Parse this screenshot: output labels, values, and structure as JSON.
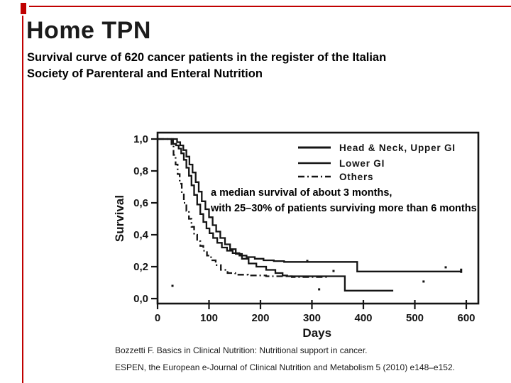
{
  "slide": {
    "title": "Home TPN",
    "subtitle_line1": "Survival curve of 620 cancer patients in the register of the Italian",
    "subtitle_line2": "Society of Parenteral and Enteral Nutrition",
    "annotation_line1": "a median survival of about 3 months,",
    "annotation_line2": "with 25–30% of patients surviving more than 6 months",
    "citation_line1": "Bozzetti F. Basics in Clinical Nutrition: Nutritional support in cancer.",
    "citation_line2": "ESPEN, the European e-Journal of Clinical Nutrition and Metabolism 5 (2010) e148–e152.",
    "accent_color": "#c00000",
    "ink_color": "#141414"
  },
  "chart_data": {
    "type": "line",
    "subtype": "kaplan-meier-step",
    "title": "",
    "xlabel": "Days",
    "ylabel": "Survival",
    "xlim": [
      0,
      623
    ],
    "ylim": [
      0,
      1.04
    ],
    "grid": false,
    "legend_position": "inside-top-right",
    "x_ticks": [
      0,
      100,
      200,
      300,
      400,
      500,
      600
    ],
    "y_ticks": [
      {
        "label": "1,0",
        "value": 1.0
      },
      {
        "label": "0,8",
        "value": 0.8
      },
      {
        "label": "0,6",
        "value": 0.6
      },
      {
        "label": "0,4",
        "value": 0.4
      },
      {
        "label": "0,2",
        "value": 0.2
      },
      {
        "label": "0,0",
        "value": 0.0
      }
    ],
    "series": [
      {
        "name": "Head & Neck, Upper GI",
        "style": "solid",
        "end_tick": true,
        "points": [
          [
            0,
            1.0
          ],
          [
            25,
            1.0
          ],
          [
            30,
            0.97
          ],
          [
            36,
            0.96
          ],
          [
            41,
            0.94
          ],
          [
            46,
            0.91
          ],
          [
            51,
            0.87
          ],
          [
            56,
            0.82
          ],
          [
            61,
            0.77
          ],
          [
            66,
            0.71
          ],
          [
            71,
            0.65
          ],
          [
            77,
            0.59
          ],
          [
            83,
            0.53
          ],
          [
            89,
            0.48
          ],
          [
            95,
            0.44
          ],
          [
            101,
            0.41
          ],
          [
            108,
            0.38
          ],
          [
            116,
            0.35
          ],
          [
            125,
            0.32
          ],
          [
            135,
            0.3
          ],
          [
            146,
            0.285
          ],
          [
            159,
            0.27
          ],
          [
            173,
            0.26
          ],
          [
            189,
            0.25
          ],
          [
            206,
            0.24
          ],
          [
            226,
            0.235
          ],
          [
            246,
            0.23
          ],
          [
            386,
            0.23
          ],
          [
            388,
            0.17
          ],
          [
            590,
            0.17
          ]
        ]
      },
      {
        "name": "Lower GI",
        "style": "solid",
        "end_tick": false,
        "points": [
          [
            0,
            1.0
          ],
          [
            32,
            1.0
          ],
          [
            38,
            0.98
          ],
          [
            44,
            0.96
          ],
          [
            50,
            0.93
          ],
          [
            56,
            0.89
          ],
          [
            62,
            0.84
          ],
          [
            68,
            0.79
          ],
          [
            74,
            0.73
          ],
          [
            80,
            0.67
          ],
          [
            86,
            0.61
          ],
          [
            93,
            0.56
          ],
          [
            100,
            0.51
          ],
          [
            107,
            0.46
          ],
          [
            114,
            0.42
          ],
          [
            122,
            0.38
          ],
          [
            131,
            0.34
          ],
          [
            141,
            0.31
          ],
          [
            152,
            0.28
          ],
          [
            164,
            0.25
          ],
          [
            177,
            0.22
          ],
          [
            192,
            0.2
          ],
          [
            211,
            0.18
          ],
          [
            229,
            0.16
          ],
          [
            243,
            0.145
          ],
          [
            252,
            0.14
          ],
          [
            362,
            0.14
          ],
          [
            364,
            0.05
          ],
          [
            458,
            0.05
          ]
        ]
      },
      {
        "name": "Others",
        "style": "dash-dot",
        "end_tick": false,
        "points": [
          [
            0,
            1.0
          ],
          [
            22,
            1.0
          ],
          [
            27,
            0.96
          ],
          [
            31,
            0.9
          ],
          [
            35,
            0.84
          ],
          [
            39,
            0.78
          ],
          [
            43,
            0.72
          ],
          [
            47,
            0.66
          ],
          [
            51,
            0.6
          ],
          [
            56,
            0.55
          ],
          [
            61,
            0.5
          ],
          [
            66,
            0.45
          ],
          [
            71,
            0.4
          ],
          [
            77,
            0.36
          ],
          [
            83,
            0.33
          ],
          [
            89,
            0.3
          ],
          [
            96,
            0.27
          ],
          [
            104,
            0.24
          ],
          [
            113,
            0.21
          ],
          [
            123,
            0.18
          ],
          [
            136,
            0.16
          ],
          [
            151,
            0.15
          ],
          [
            176,
            0.145
          ],
          [
            211,
            0.14
          ],
          [
            261,
            0.135
          ],
          [
            332,
            0.13
          ]
        ]
      }
    ],
    "scatter_marks": [
      [
        29,
        0.08
      ],
      [
        291,
        0.236
      ],
      [
        342,
        0.173
      ],
      [
        314,
        0.058
      ],
      [
        517,
        0.107
      ],
      [
        560,
        0.196
      ]
    ]
  }
}
